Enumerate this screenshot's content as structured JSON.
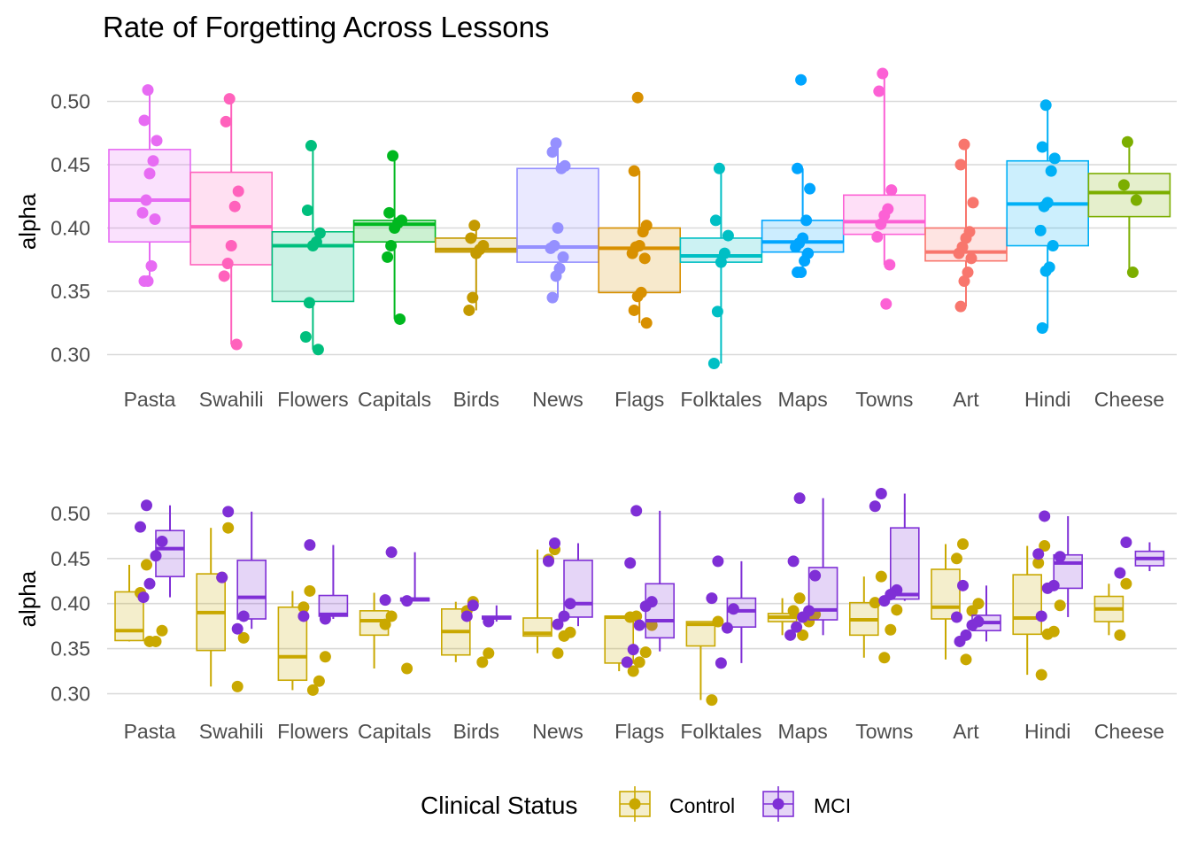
{
  "chart_data": [
    {
      "type": "box",
      "title": "Rate of Forgetting Across Lessons",
      "ylabel": "alpha",
      "ylim": [
        0.285,
        0.525
      ],
      "yticks": [
        "0.30",
        "0.35",
        "0.40",
        "0.45",
        "0.50"
      ],
      "grid": true,
      "categories": [
        "Pasta",
        "Swahili",
        "Flowers",
        "Capitals",
        "Birds",
        "News",
        "Flags",
        "Folktales",
        "Maps",
        "Towns",
        "Art",
        "Hindi",
        "Cheese"
      ],
      "colors": [
        "#e76bf3",
        "#ff62bc",
        "#00bf7d",
        "#00b81f",
        "#c49a00",
        "#9590ff",
        "#d89000",
        "#00bfc4",
        "#00a5ff",
        "#fc61d5",
        "#f8766d",
        "#00b0f6",
        "#7cae00"
      ],
      "boxes": [
        {
          "min": 0.358,
          "q1": 0.389,
          "median": 0.422,
          "q3": 0.462,
          "max": 0.509
        },
        {
          "min": 0.308,
          "q1": 0.371,
          "median": 0.401,
          "q3": 0.444,
          "max": 0.502
        },
        {
          "min": 0.304,
          "q1": 0.342,
          "median": 0.386,
          "q3": 0.397,
          "max": 0.465
        },
        {
          "min": 0.328,
          "q1": 0.389,
          "median": 0.403,
          "q3": 0.406,
          "max": 0.457
        },
        {
          "min": 0.335,
          "q1": 0.381,
          "median": 0.383,
          "q3": 0.392,
          "max": 0.402
        },
        {
          "min": 0.345,
          "q1": 0.373,
          "median": 0.385,
          "q3": 0.447,
          "max": 0.467
        },
        {
          "min": 0.325,
          "q1": 0.349,
          "median": 0.384,
          "q3": 0.4,
          "max": 0.445
        },
        {
          "min": 0.293,
          "q1": 0.373,
          "median": 0.378,
          "q3": 0.392,
          "max": 0.447
        },
        {
          "min": 0.365,
          "q1": 0.381,
          "median": 0.389,
          "q3": 0.406,
          "max": 0.447
        },
        {
          "min": 0.371,
          "q1": 0.395,
          "median": 0.405,
          "q3": 0.426,
          "max": 0.522
        },
        {
          "min": 0.338,
          "q1": 0.374,
          "median": 0.381,
          "q3": 0.4,
          "max": 0.466
        },
        {
          "min": 0.321,
          "q1": 0.386,
          "median": 0.419,
          "q3": 0.453,
          "max": 0.497
        },
        {
          "min": 0.365,
          "q1": 0.409,
          "median": 0.428,
          "q3": 0.443,
          "max": 0.468
        }
      ],
      "points": [
        [
          0.509,
          0.485,
          0.469,
          0.453,
          0.443,
          0.422,
          0.412,
          0.407,
          0.37,
          0.358,
          0.358
        ],
        [
          0.502,
          0.484,
          0.429,
          0.417,
          0.386,
          0.372,
          0.362,
          0.308
        ],
        [
          0.465,
          0.414,
          0.396,
          0.389,
          0.386,
          0.341,
          0.314,
          0.304
        ],
        [
          0.457,
          0.412,
          0.406,
          0.404,
          0.4,
          0.386,
          0.377,
          0.328
        ],
        [
          0.402,
          0.392,
          0.386,
          0.383,
          0.38,
          0.345,
          0.335
        ],
        [
          0.467,
          0.46,
          0.449,
          0.447,
          0.4,
          0.386,
          0.384,
          0.377,
          0.368,
          0.362,
          0.345
        ],
        [
          0.503,
          0.445,
          0.402,
          0.397,
          0.386,
          0.385,
          0.38,
          0.376,
          0.349,
          0.346,
          0.335,
          0.325
        ],
        [
          0.447,
          0.406,
          0.394,
          0.38,
          0.373,
          0.334,
          0.293
        ],
        [
          0.517,
          0.447,
          0.431,
          0.406,
          0.392,
          0.388,
          0.385,
          0.38,
          0.374,
          0.365,
          0.365
        ],
        [
          0.522,
          0.508,
          0.43,
          0.415,
          0.41,
          0.403,
          0.393,
          0.371,
          0.34
        ],
        [
          0.466,
          0.45,
          0.42,
          0.397,
          0.392,
          0.385,
          0.38,
          0.376,
          0.365,
          0.358,
          0.338
        ],
        [
          0.497,
          0.464,
          0.455,
          0.445,
          0.42,
          0.417,
          0.398,
          0.386,
          0.369,
          0.366,
          0.321
        ],
        [
          0.468,
          0.434,
          0.422,
          0.365
        ]
      ]
    },
    {
      "type": "box",
      "ylabel": "alpha",
      "ylim": [
        0.285,
        0.525
      ],
      "yticks": [
        "0.30",
        "0.35",
        "0.40",
        "0.45",
        "0.50"
      ],
      "grid": true,
      "categories": [
        "Pasta",
        "Swahili",
        "Flowers",
        "Capitals",
        "Birds",
        "News",
        "Flags",
        "Folktales",
        "Maps",
        "Towns",
        "Art",
        "Hindi",
        "Cheese"
      ],
      "series": [
        {
          "name": "Control",
          "color": "#c9a800",
          "boxes": [
            {
              "min": 0.358,
              "q1": 0.359,
              "median": 0.37,
              "q3": 0.413,
              "max": 0.443
            },
            {
              "min": 0.308,
              "q1": 0.348,
              "median": 0.39,
              "q3": 0.433,
              "max": 0.484
            },
            {
              "min": 0.304,
              "q1": 0.315,
              "median": 0.341,
              "q3": 0.396,
              "max": 0.414
            },
            {
              "min": 0.328,
              "q1": 0.365,
              "median": 0.381,
              "q3": 0.392,
              "max": 0.412
            },
            {
              "min": 0.335,
              "q1": 0.343,
              "median": 0.369,
              "q3": 0.394,
              "max": 0.402
            },
            {
              "min": 0.345,
              "q1": 0.364,
              "median": 0.367,
              "q3": 0.384,
              "max": 0.46
            },
            {
              "min": 0.325,
              "q1": 0.334,
              "median": 0.385,
              "q3": 0.386,
              "max": 0.386
            },
            {
              "min": 0.293,
              "q1": 0.353,
              "median": 0.377,
              "q3": 0.38,
              "max": 0.38
            },
            {
              "min": 0.365,
              "q1": 0.38,
              "median": 0.385,
              "q3": 0.389,
              "max": 0.406
            },
            {
              "min": 0.34,
              "q1": 0.365,
              "median": 0.382,
              "q3": 0.401,
              "max": 0.43
            },
            {
              "min": 0.338,
              "q1": 0.383,
              "median": 0.396,
              "q3": 0.438,
              "max": 0.466
            },
            {
              "min": 0.321,
              "q1": 0.366,
              "median": 0.384,
              "q3": 0.432,
              "max": 0.464
            },
            {
              "min": 0.365,
              "q1": 0.38,
              "median": 0.394,
              "q3": 0.408,
              "max": 0.422
            }
          ],
          "points": [
            [
              0.443,
              0.412,
              0.37,
              0.358,
              0.358
            ],
            [
              0.484,
              0.429,
              0.362,
              0.308
            ],
            [
              0.414,
              0.396,
              0.341,
              0.314,
              0.304
            ],
            [
              0.386,
              0.377,
              0.328
            ],
            [
              0.402,
              0.392,
              0.345,
              0.335
            ],
            [
              0.46,
              0.449,
              0.368,
              0.364,
              0.345
            ],
            [
              0.386,
              0.385,
              0.376,
              0.346,
              0.335,
              0.325
            ],
            [
              0.38,
              0.293
            ],
            [
              0.406,
              0.392,
              0.388,
              0.38,
              0.365
            ],
            [
              0.43,
              0.401,
              0.393,
              0.371,
              0.34
            ],
            [
              0.466,
              0.45,
              0.4,
              0.392,
              0.338
            ],
            [
              0.464,
              0.445,
              0.398,
              0.369,
              0.366,
              0.321
            ],
            [
              0.422,
              0.365
            ]
          ]
        },
        {
          "name": "MCI",
          "color": "#7f2fd6",
          "boxes": [
            {
              "min": 0.407,
              "q1": 0.43,
              "median": 0.461,
              "q3": 0.481,
              "max": 0.509
            },
            {
              "min": 0.372,
              "q1": 0.383,
              "median": 0.407,
              "q3": 0.448,
              "max": 0.502
            },
            {
              "min": 0.383,
              "q1": 0.386,
              "median": 0.388,
              "q3": 0.409,
              "max": 0.465
            },
            {
              "min": 0.403,
              "q1": 0.403,
              "median": 0.405,
              "q3": 0.406,
              "max": 0.457
            },
            {
              "min": 0.38,
              "q1": 0.383,
              "median": 0.384,
              "q3": 0.386,
              "max": 0.398
            },
            {
              "min": 0.375,
              "q1": 0.385,
              "median": 0.4,
              "q3": 0.448,
              "max": 0.467
            },
            {
              "min": 0.347,
              "q1": 0.362,
              "median": 0.381,
              "q3": 0.422,
              "max": 0.503
            },
            {
              "min": 0.334,
              "q1": 0.374,
              "median": 0.392,
              "q3": 0.406,
              "max": 0.447
            },
            {
              "min": 0.365,
              "q1": 0.382,
              "median": 0.393,
              "q3": 0.44,
              "max": 0.517
            },
            {
              "min": 0.403,
              "q1": 0.405,
              "median": 0.41,
              "q3": 0.484,
              "max": 0.522
            },
            {
              "min": 0.358,
              "q1": 0.37,
              "median": 0.379,
              "q3": 0.387,
              "max": 0.42
            },
            {
              "min": 0.385,
              "q1": 0.417,
              "median": 0.445,
              "q3": 0.454,
              "max": 0.497
            },
            {
              "min": 0.436,
              "q1": 0.442,
              "median": 0.45,
              "q3": 0.458,
              "max": 0.468
            }
          ],
          "points": [
            [
              0.509,
              0.485,
              0.469,
              0.453,
              0.422,
              0.407
            ],
            [
              0.502,
              0.429,
              0.386,
              0.372
            ],
            [
              0.465,
              0.386,
              0.383
            ],
            [
              0.457,
              0.404,
              0.403
            ],
            [
              0.398,
              0.386,
              0.38
            ],
            [
              0.467,
              0.447,
              0.4,
              0.386,
              0.377
            ],
            [
              0.503,
              0.445,
              0.402,
              0.397,
              0.376,
              0.349,
              0.335
            ],
            [
              0.447,
              0.406,
              0.394,
              0.373,
              0.334
            ],
            [
              0.517,
              0.447,
              0.431,
              0.392,
              0.385,
              0.374,
              0.365
            ],
            [
              0.522,
              0.508,
              0.415,
              0.41,
              0.403
            ],
            [
              0.42,
              0.385,
              0.38,
              0.376,
              0.365,
              0.358
            ],
            [
              0.497,
              0.455,
              0.452,
              0.42,
              0.417,
              0.386
            ],
            [
              0.468,
              0.434
            ]
          ]
        }
      ],
      "legend": {
        "title": "Clinical Status",
        "position": "bottom"
      }
    }
  ]
}
